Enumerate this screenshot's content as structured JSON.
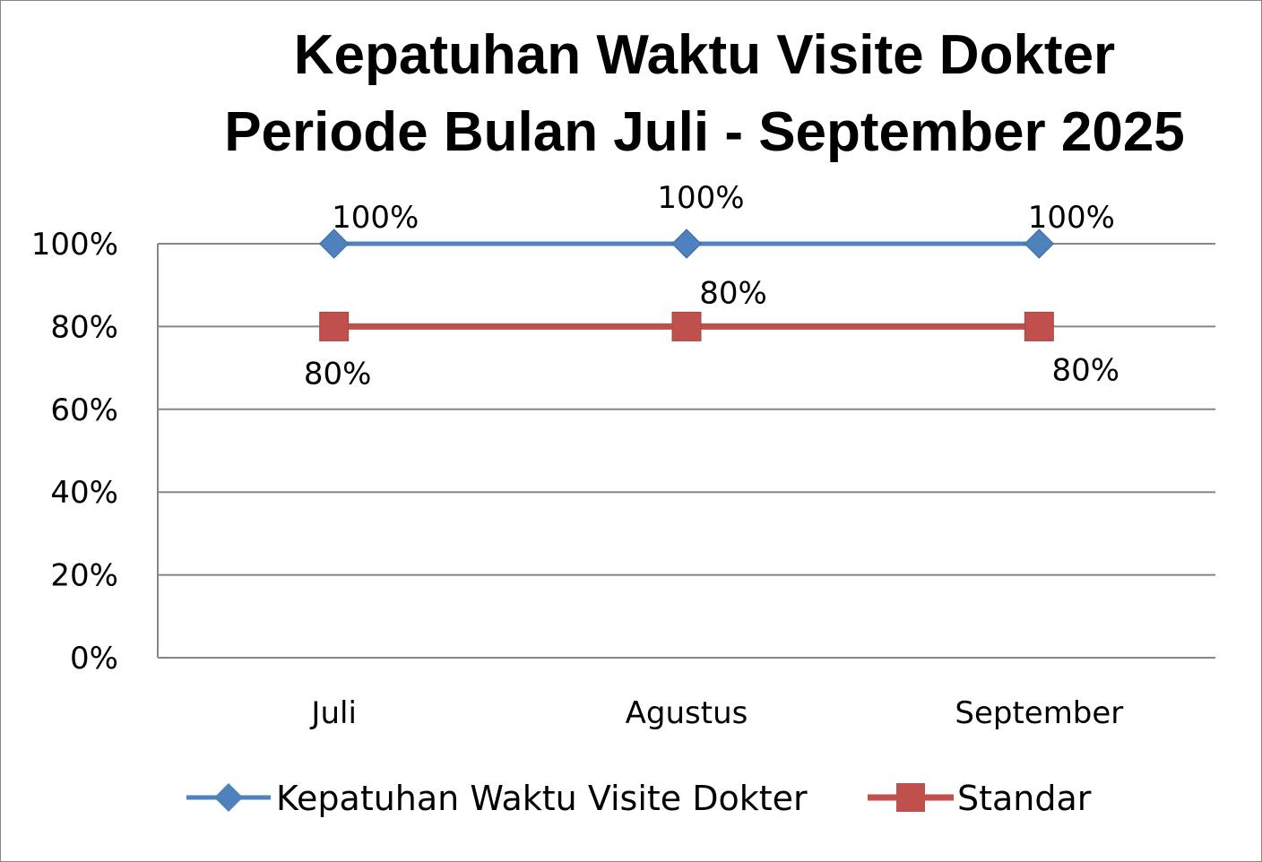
{
  "chart_data": {
    "type": "line",
    "title_lines": [
      "Kepatuhan Waktu Visite Dokter",
      "Periode Bulan Juli - September 2025"
    ],
    "xlabel": "",
    "ylabel": "",
    "categories": [
      "Juli",
      "Agustus",
      "September"
    ],
    "ylim": [
      0,
      100
    ],
    "yticks": [
      0,
      20,
      40,
      60,
      80,
      100
    ],
    "ytick_labels": [
      "0%",
      "20%",
      "40%",
      "60%",
      "80%",
      "100%"
    ],
    "grid": true,
    "legend_position": "bottom",
    "series": [
      {
        "name": "Kepatuhan Waktu Visite Dokter",
        "values": [
          100,
          100,
          100
        ],
        "labels": [
          "100%",
          "100%",
          "100%"
        ],
        "color": "#4f81bd",
        "marker": "diamond"
      },
      {
        "name": "Standar",
        "values": [
          80,
          80,
          80
        ],
        "labels": [
          "80%",
          "80%",
          "80%"
        ],
        "color": "#c0504d",
        "marker": "square"
      }
    ]
  }
}
